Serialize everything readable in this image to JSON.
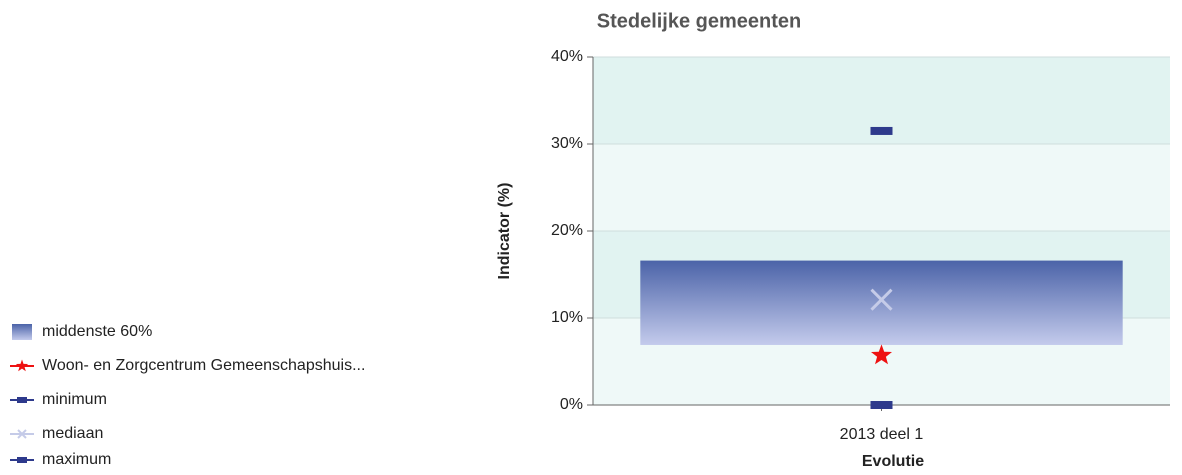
{
  "chart_data": {
    "type": "box-range",
    "title": "Stedelijke gemeenten",
    "x_label": "Evolutie",
    "y_label": "Indicator (%)",
    "categories": [
      "2013 deel 1"
    ],
    "ylim": [
      0,
      40
    ],
    "yticks": [
      {
        "value": 0,
        "label": "0%"
      },
      {
        "value": 10,
        "label": "10%"
      },
      {
        "value": 20,
        "label": "20%"
      },
      {
        "value": 30,
        "label": "30%"
      },
      {
        "value": 40,
        "label": "40%"
      }
    ],
    "grid": true,
    "legend": "left",
    "box": {
      "name": "middenste 60%",
      "color": "#4b63a8",
      "low": [
        6.9
      ],
      "high": [
        16.6
      ]
    },
    "series": [
      {
        "name": "Woon- en Zorgcentrum Gemeenschapshuis...",
        "color": "#ee1111",
        "marker": "star",
        "values": [
          5.7
        ]
      },
      {
        "name": "minimum",
        "color": "#2e3a8c",
        "marker": "rect",
        "values": [
          0
        ]
      },
      {
        "name": "mediaan",
        "color": "#c5cbe8",
        "marker": "x",
        "values": [
          12.1
        ]
      },
      {
        "name": "maximum",
        "color": "#2e3a8c",
        "marker": "rect",
        "values": [
          31.5
        ]
      }
    ]
  }
}
